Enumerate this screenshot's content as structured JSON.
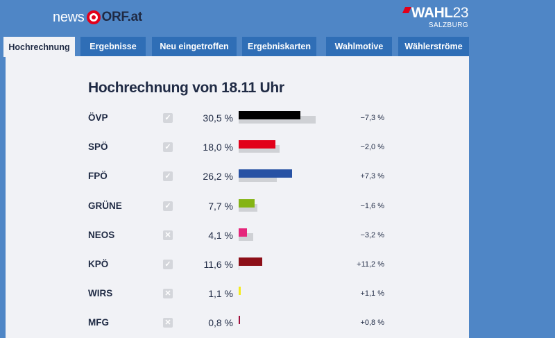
{
  "header": {
    "brand_news": "news",
    "brand_orf": "ORF.at",
    "wahl_word": "WAHL",
    "wahl_year": "23",
    "wahl_sub": "SALZBURG"
  },
  "tabs": [
    {
      "label": "Hochrechnung",
      "active": true
    },
    {
      "label": "Ergebnisse",
      "active": false
    },
    {
      "label": "Neu eingetroffen",
      "active": false
    },
    {
      "label": "Ergebniskarten",
      "active": false
    },
    {
      "label": "Wahlmotive",
      "active": false
    },
    {
      "label": "Wählerströme",
      "active": false
    }
  ],
  "main": {
    "title": "Hochrechnung von 18.11 Uhr"
  },
  "colors": {
    "background": "#4f86c6",
    "tab": "#2f6eb6",
    "panel": "#f1f2f6",
    "text": "#1f2a44",
    "previous_bar": "#cfd1d5"
  },
  "parties": [
    {
      "name": "ÖVP",
      "status": "check",
      "percent_text": "30,5 %",
      "change_text": "−7,3 %",
      "value": 30.5,
      "change": -7.3,
      "color": "#000000"
    },
    {
      "name": "SPÖ",
      "status": "check",
      "percent_text": "18,0 %",
      "change_text": "−2,0 %",
      "value": 18.0,
      "change": -2.0,
      "color": "#e2001a"
    },
    {
      "name": "FPÖ",
      "status": "check",
      "percent_text": "26,2 %",
      "change_text": "+7,3 %",
      "value": 26.2,
      "change": 7.3,
      "color": "#2852a4"
    },
    {
      "name": "GRÜNE",
      "status": "check",
      "percent_text": "7,7 %",
      "change_text": "−1,6 %",
      "value": 7.7,
      "change": -1.6,
      "color": "#84b414"
    },
    {
      "name": "NEOS",
      "status": "cross",
      "percent_text": "4,1 %",
      "change_text": "−3,2 %",
      "value": 4.1,
      "change": -3.2,
      "color": "#e5267b"
    },
    {
      "name": "KPÖ",
      "status": "check",
      "percent_text": "11,6 %",
      "change_text": "+11,2 %",
      "value": 11.6,
      "change": 11.2,
      "color": "#8d0f18"
    },
    {
      "name": "WIRS",
      "status": "cross",
      "percent_text": "1,1 %",
      "change_text": "+1,1 %",
      "value": 1.1,
      "change": 1.1,
      "color": "#f4eb1c"
    },
    {
      "name": "MFG",
      "status": "cross",
      "percent_text": "0,8 %",
      "change_text": "+0,8 %",
      "value": 0.8,
      "change": 0.8,
      "color": "#a0103c"
    }
  ]
}
